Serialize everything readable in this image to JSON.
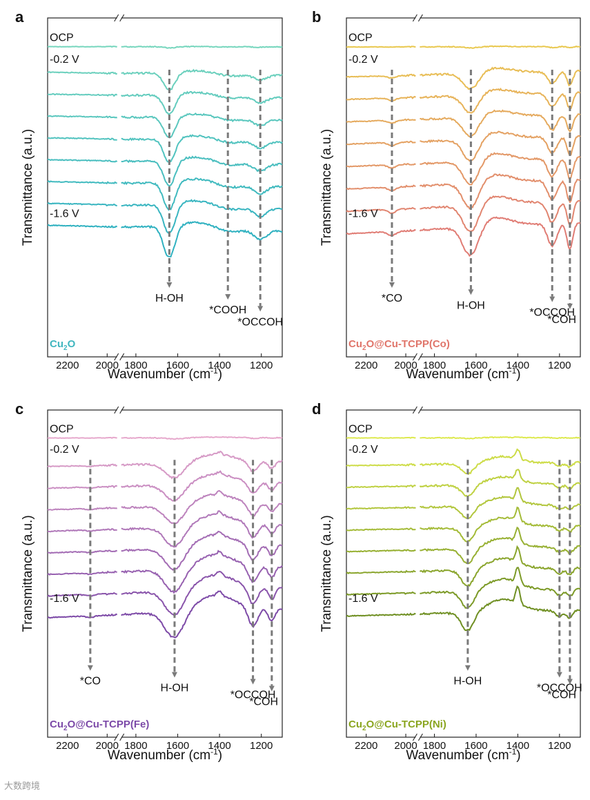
{
  "chart_data": [
    {
      "type": "line",
      "panel_letter": "a",
      "sample": "Cu2O",
      "sample_base": "Cu",
      "sample_sub": "2",
      "sample_rest": "O",
      "sample_color": "#40b6bf",
      "xlabel_main": "Wavenumber (cm",
      "xlabel_sup": "-1",
      "xlabel_close": ")",
      "ylabel": "Transmittance (a.u.)",
      "xlim_left": [
        2300,
        1950
      ],
      "xlim_right": [
        1870,
        1100
      ],
      "xticks_left": [
        2200,
        2000
      ],
      "xticks_right": [
        1800,
        1600,
        1400,
        1200
      ],
      "series_labels": [
        "OCP",
        "-0.2 V",
        "-1.6 V"
      ],
      "colors": [
        "#76d6bd",
        "#2fb1c0"
      ],
      "peaks": [
        {
          "w": 1640,
          "a": 2.0,
          "s": 28
        },
        {
          "w": 1360,
          "a": 0.3,
          "s": 60
        },
        {
          "w": 1205,
          "a": 0.55,
          "s": 30
        }
      ],
      "broad": {
        "w": 1500,
        "a": -0.4,
        "s": 120
      },
      "tilt": 0.35,
      "annotations": [
        {
          "label": "H-OH",
          "wavenumber": 1640
        },
        {
          "label": "*COOH",
          "wavenumber": 1360
        },
        {
          "label": "*OCCOH",
          "wavenumber": 1205
        }
      ]
    },
    {
      "type": "line",
      "panel_letter": "b",
      "sample": "Cu2O@Cu-TCPP(Co)",
      "sample_base": "Cu",
      "sample_sub": "2",
      "sample_rest": "O@Cu-TCPP(Co)",
      "sample_color": "#e0756a",
      "xlabel_main": "Wavenumber (cm",
      "xlabel_sup": "-1",
      "xlabel_close": ")",
      "ylabel": "Transmittance (a.u.)",
      "xlim_left": [
        2300,
        1950
      ],
      "xlim_right": [
        1870,
        1100
      ],
      "xticks_left": [
        2200,
        2000
      ],
      "xticks_right": [
        1800,
        1600,
        1400,
        1200
      ],
      "series_labels": [
        "OCP",
        "-0.2 V",
        "-1.6 V"
      ],
      "colors": [
        "#e9c84f",
        "#e07c74"
      ],
      "peaks": [
        {
          "w": 2070,
          "a": 0.25,
          "s": 20
        },
        {
          "w": 1625,
          "a": 1.9,
          "s": 38
        },
        {
          "w": 1235,
          "a": 1.35,
          "s": 22
        },
        {
          "w": 1150,
          "a": 1.6,
          "s": 14
        }
      ],
      "broad": {
        "w": 1510,
        "a": -0.55,
        "s": 80
      },
      "tilt": -0.7,
      "annotations": [
        {
          "label": "*CO",
          "wavenumber": 2070
        },
        {
          "label": "H-OH",
          "wavenumber": 1625
        },
        {
          "label": "*OCCOH",
          "wavenumber": 1235
        },
        {
          "label": "*COH",
          "wavenumber": 1150
        }
      ]
    },
    {
      "type": "line",
      "panel_letter": "c",
      "sample": "Cu2O@Cu-TCPP(Fe)",
      "sample_base": "Cu",
      "sample_sub": "2",
      "sample_rest": "O@Cu-TCPP(Fe)",
      "sample_color": "#7c4aa8",
      "xlabel_main": "Wavenumber (cm",
      "xlabel_sup": "-1",
      "xlabel_close": ")",
      "ylabel": "Transmittance (a.u.)",
      "xlim_left": [
        2300,
        1950
      ],
      "xlim_right": [
        1870,
        1100
      ],
      "xticks_left": [
        2200,
        2000
      ],
      "xticks_right": [
        1800,
        1600,
        1400,
        1200
      ],
      "series_labels": [
        "OCP",
        "-0.2 V",
        "-1.6 V"
      ],
      "colors": [
        "#e6a8cc",
        "#7d4aa7"
      ],
      "peaks": [
        {
          "w": 2085,
          "a": 0.1,
          "s": 20
        },
        {
          "w": 1615,
          "a": 1.7,
          "s": 45
        },
        {
          "w": 1400,
          "a": -0.3,
          "s": 10
        },
        {
          "w": 1240,
          "a": 1.2,
          "s": 22
        },
        {
          "w": 1150,
          "a": 0.8,
          "s": 16
        }
      ],
      "broad": {
        "w": 1420,
        "a": -1.0,
        "s": 90
      },
      "tilt": -0.6,
      "annotations": [
        {
          "label": "*CO",
          "wavenumber": 2085
        },
        {
          "label": "H-OH",
          "wavenumber": 1615
        },
        {
          "label": "*OCCOH",
          "wavenumber": 1240
        },
        {
          "label": "*COH",
          "wavenumber": 1150
        }
      ]
    },
    {
      "type": "line",
      "panel_letter": "d",
      "sample": "Cu2O@Cu-TCPP(Ni)",
      "sample_base": "Cu",
      "sample_sub": "2",
      "sample_rest": "O@Cu-TCPP(Ni)",
      "sample_color": "#8aa51f",
      "xlabel_main": "Wavenumber (cm",
      "xlabel_sup": "-1",
      "xlabel_close": ")",
      "ylabel": "Transmittance (a.u.)",
      "xlim_left": [
        2300,
        1950
      ],
      "xlim_right": [
        1870,
        1100
      ],
      "xticks_left": [
        2200,
        2000
      ],
      "xticks_right": [
        1800,
        1600,
        1400,
        1200
      ],
      "series_labels": [
        "OCP",
        "-0.2 V",
        "-1.6 V"
      ],
      "colors": [
        "#dde94e",
        "#6f8f22"
      ],
      "peaks": [
        {
          "w": 1640,
          "a": 1.2,
          "s": 30
        },
        {
          "w": 1400,
          "a": -1.1,
          "s": 10
        },
        {
          "w": 1200,
          "a": 0.4,
          "s": 18
        },
        {
          "w": 1150,
          "a": 0.5,
          "s": 14
        }
      ],
      "broad": {
        "w": 1470,
        "a": -0.8,
        "s": 75
      },
      "tilt": -0.4,
      "annotations": [
        {
          "label": "H-OH",
          "wavenumber": 1640
        },
        {
          "label": "*OCCOH",
          "wavenumber": 1200
        },
        {
          "label": "*COH",
          "wavenumber": 1150
        }
      ]
    }
  ],
  "watermark": "大数跨境"
}
